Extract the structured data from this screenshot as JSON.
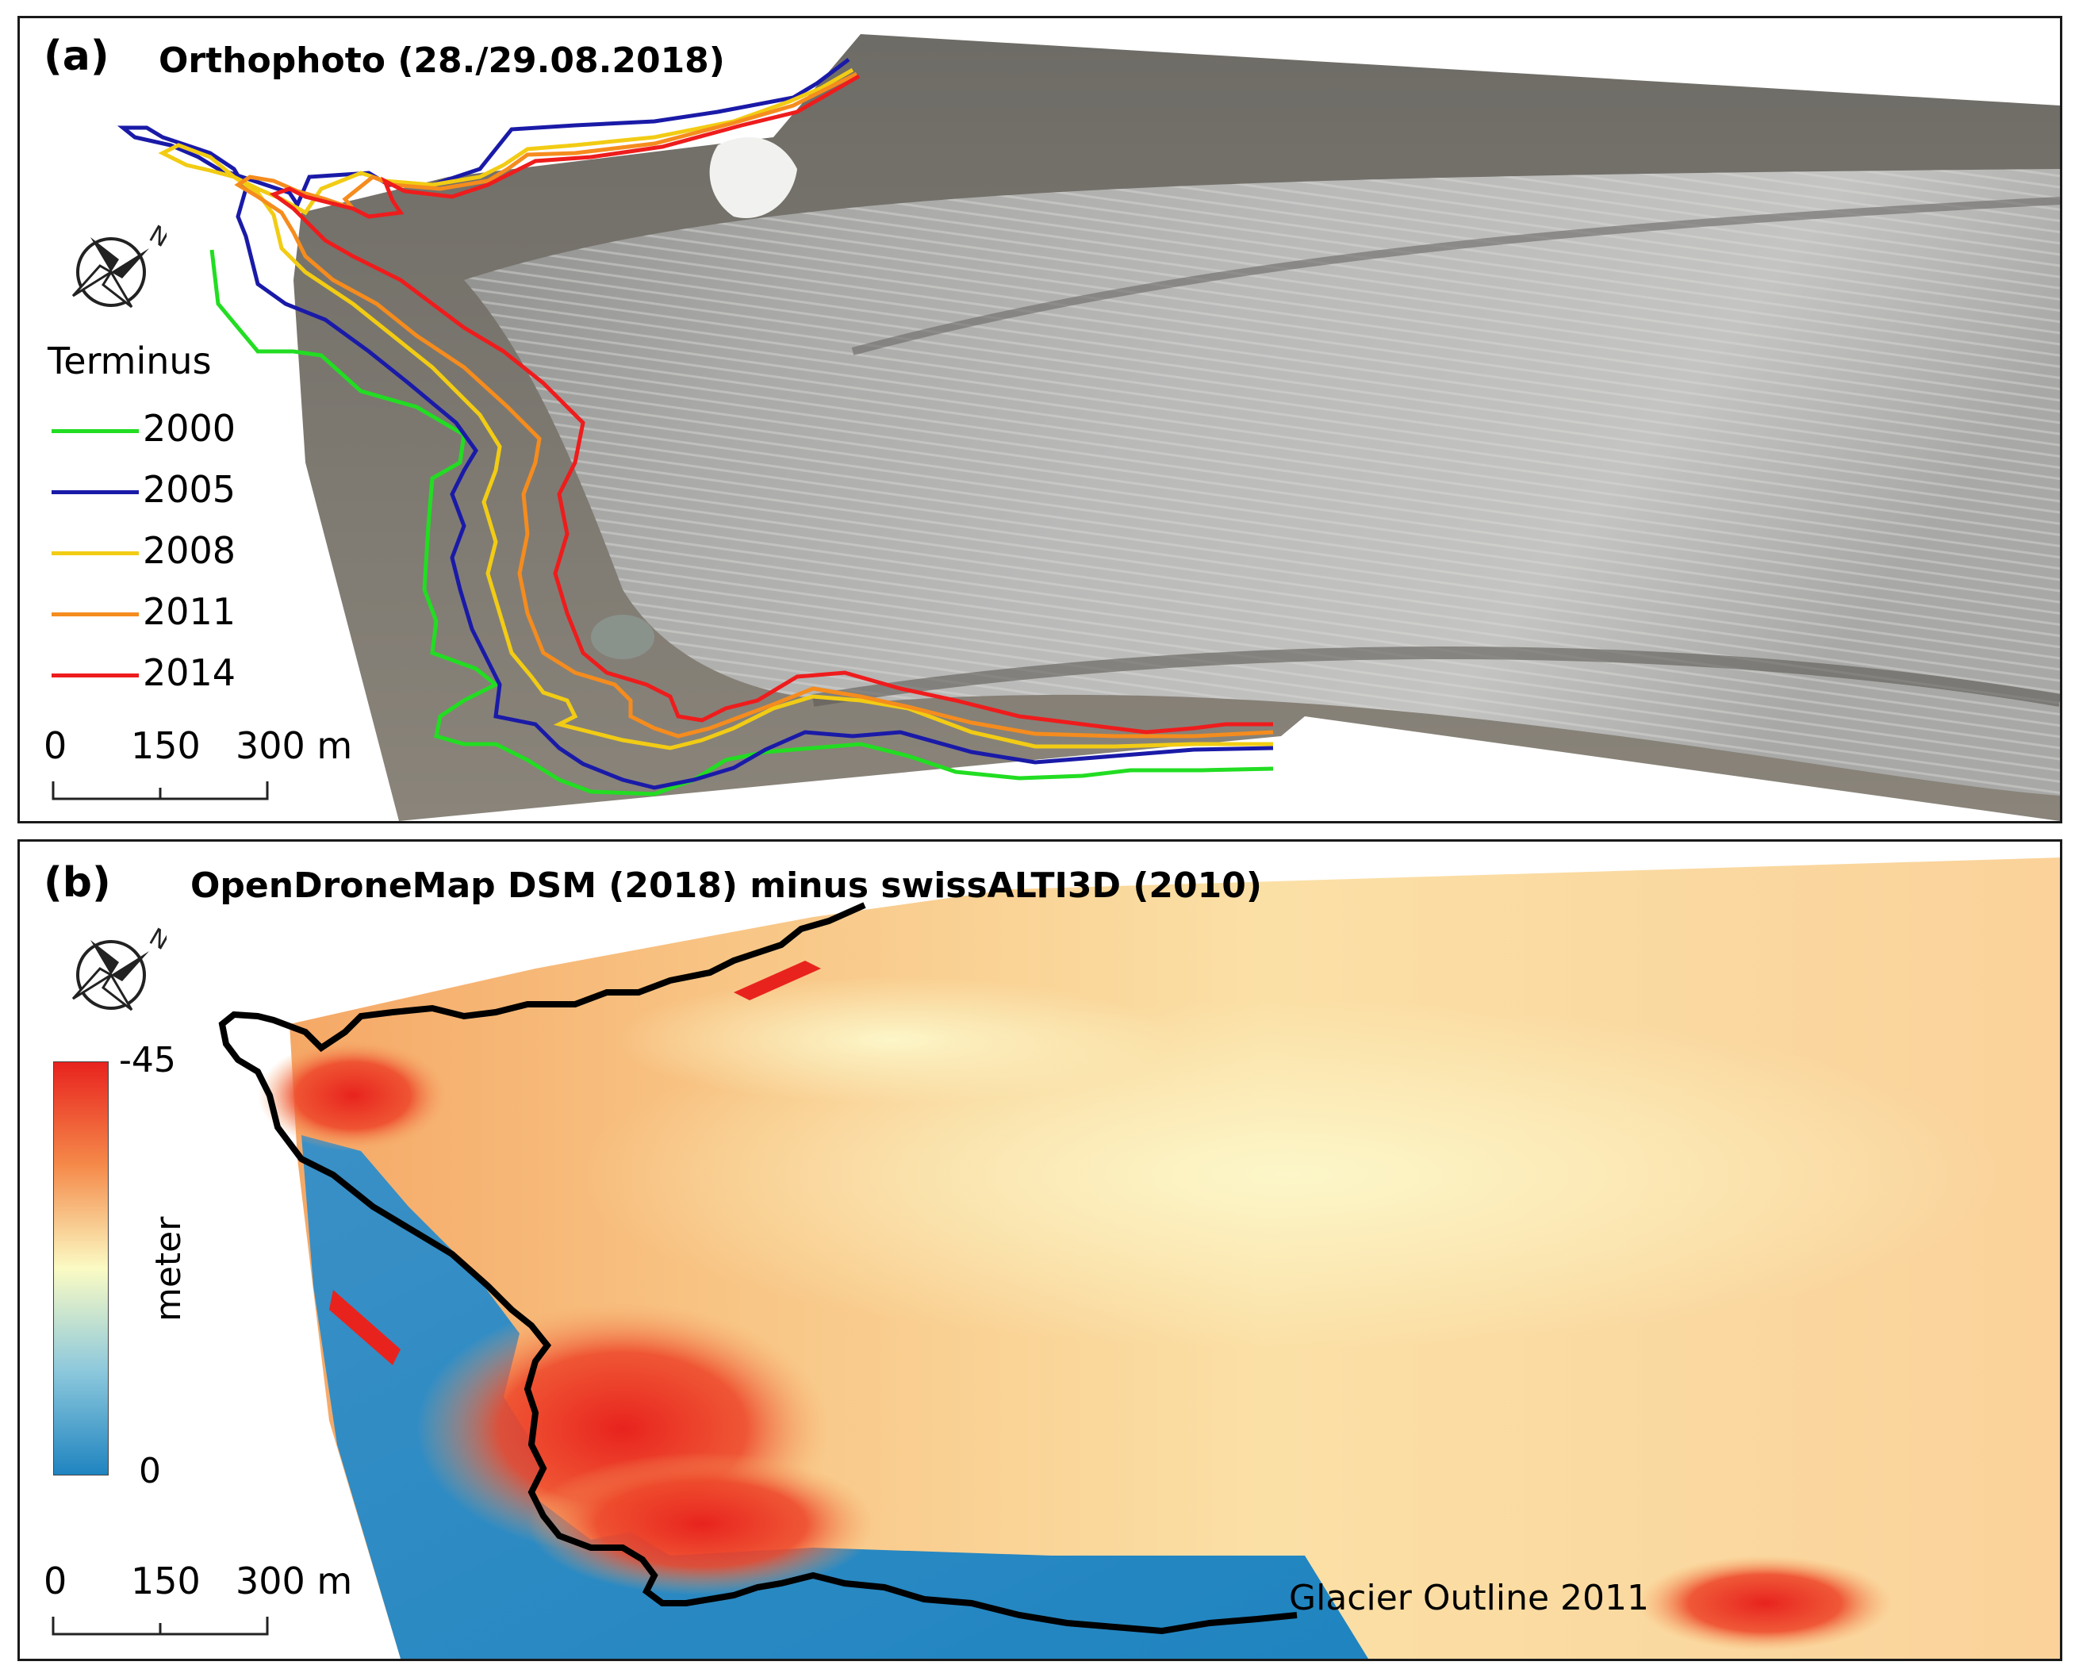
{
  "panel_a": {
    "letter": "(a)",
    "title": "Orthophoto (28./29.08.2018)",
    "legend_title": "Terminus",
    "legend": [
      {
        "year": "2000",
        "color": "#22dd22"
      },
      {
        "year": "2005",
        "color": "#1a1aa8"
      },
      {
        "year": "2008",
        "color": "#f2cc14"
      },
      {
        "year": "2011",
        "color": "#f58c1e"
      },
      {
        "year": "2014",
        "color": "#ee1c1c"
      }
    ],
    "scale": {
      "t0": "0",
      "t1": "150",
      "t2": "300 m"
    },
    "north_icon": "north-arrow-icon"
  },
  "panel_b": {
    "letter": "(b)",
    "title": "OpenDroneMap DSM (2018) minus swissALTI3D (2010)",
    "colorbar": {
      "max_label": "-45",
      "min_label": "0",
      "unit": "meter",
      "color_high": "#e8231e",
      "color_mid": "#fbfbc4",
      "color_low": "#1f84c0"
    },
    "outline_label": "Glacier Outline 2011",
    "outline_color": "#000000",
    "scale": {
      "t0": "0",
      "t1": "150",
      "t2": "300 m"
    },
    "north_icon": "north-arrow-icon"
  }
}
